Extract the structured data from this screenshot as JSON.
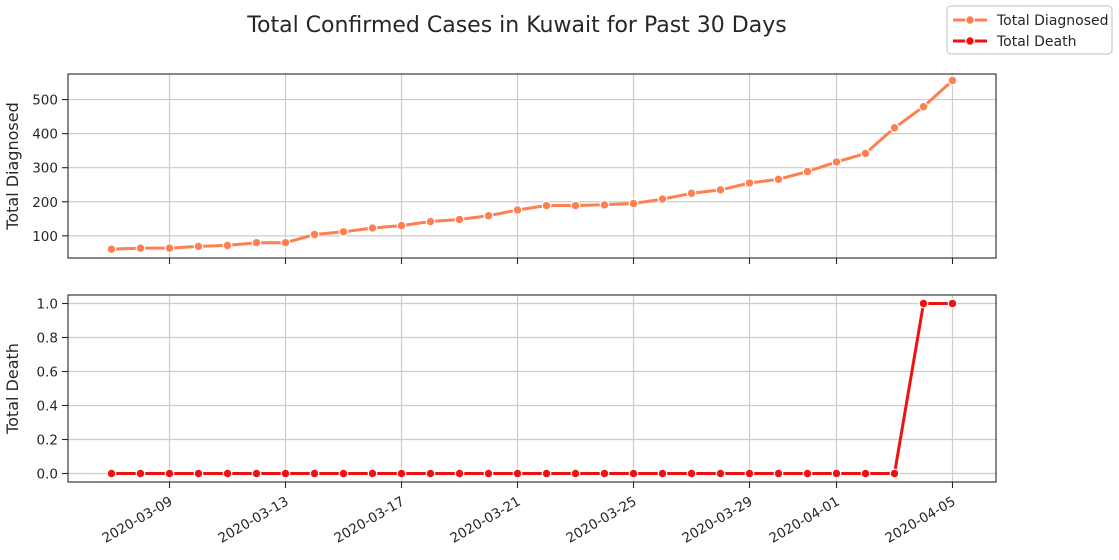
{
  "title": "Total Confirmed Cases in Kuwait for Past 30 Days",
  "legend": {
    "placement": "top-right",
    "items": [
      {
        "label": "Total Diagnosed",
        "color": "#FF7F50"
      },
      {
        "label": "Total Death",
        "color": "#EE1111"
      }
    ]
  },
  "chart_data": [
    {
      "type": "line",
      "ylabel": "Total Diagnosed",
      "ylim": [
        35,
        575
      ],
      "yticks": [
        100,
        200,
        300,
        400,
        500
      ],
      "color": "#FF7F50",
      "grid": true,
      "series": [
        {
          "name": "Total Diagnosed",
          "x": [
            "2020-03-07",
            "2020-03-08",
            "2020-03-09",
            "2020-03-10",
            "2020-03-11",
            "2020-03-12",
            "2020-03-13",
            "2020-03-14",
            "2020-03-15",
            "2020-03-16",
            "2020-03-17",
            "2020-03-18",
            "2020-03-19",
            "2020-03-20",
            "2020-03-21",
            "2020-03-22",
            "2020-03-23",
            "2020-03-24",
            "2020-03-25",
            "2020-03-26",
            "2020-03-27",
            "2020-03-28",
            "2020-03-29",
            "2020-03-30",
            "2020-03-31",
            "2020-04-01",
            "2020-04-02",
            "2020-04-03",
            "2020-04-04",
            "2020-04-05"
          ],
          "values": [
            61,
            64,
            64,
            69,
            72,
            80,
            80,
            104,
            112,
            123,
            130,
            142,
            148,
            159,
            176,
            189,
            189,
            191,
            195,
            208,
            225,
            235,
            255,
            266,
            289,
            317,
            342,
            417,
            479,
            556
          ]
        }
      ]
    },
    {
      "type": "line",
      "ylabel": "Total Death",
      "ylim": [
        -0.05,
        1.05
      ],
      "yticks": [
        0.0,
        0.2,
        0.4,
        0.6,
        0.8,
        1.0
      ],
      "color": "#EE1111",
      "grid": true,
      "series": [
        {
          "name": "Total Death",
          "x": [
            "2020-03-07",
            "2020-03-08",
            "2020-03-09",
            "2020-03-10",
            "2020-03-11",
            "2020-03-12",
            "2020-03-13",
            "2020-03-14",
            "2020-03-15",
            "2020-03-16",
            "2020-03-17",
            "2020-03-18",
            "2020-03-19",
            "2020-03-20",
            "2020-03-21",
            "2020-03-22",
            "2020-03-23",
            "2020-03-24",
            "2020-03-25",
            "2020-03-26",
            "2020-03-27",
            "2020-03-28",
            "2020-03-29",
            "2020-03-30",
            "2020-03-31",
            "2020-04-01",
            "2020-04-02",
            "2020-04-03",
            "2020-04-04",
            "2020-04-05"
          ],
          "values": [
            0,
            0,
            0,
            0,
            0,
            0,
            0,
            0,
            0,
            0,
            0,
            0,
            0,
            0,
            0,
            0,
            0,
            0,
            0,
            0,
            0,
            0,
            0,
            0,
            0,
            0,
            0,
            0,
            1,
            1
          ]
        }
      ]
    }
  ],
  "xticks": [
    "2020-03-09",
    "2020-03-13",
    "2020-03-17",
    "2020-03-21",
    "2020-03-25",
    "2020-03-29",
    "2020-04-01",
    "2020-04-05"
  ],
  "xlim": [
    "2020-03-05T12:00",
    "2020-04-06T12:00"
  ]
}
